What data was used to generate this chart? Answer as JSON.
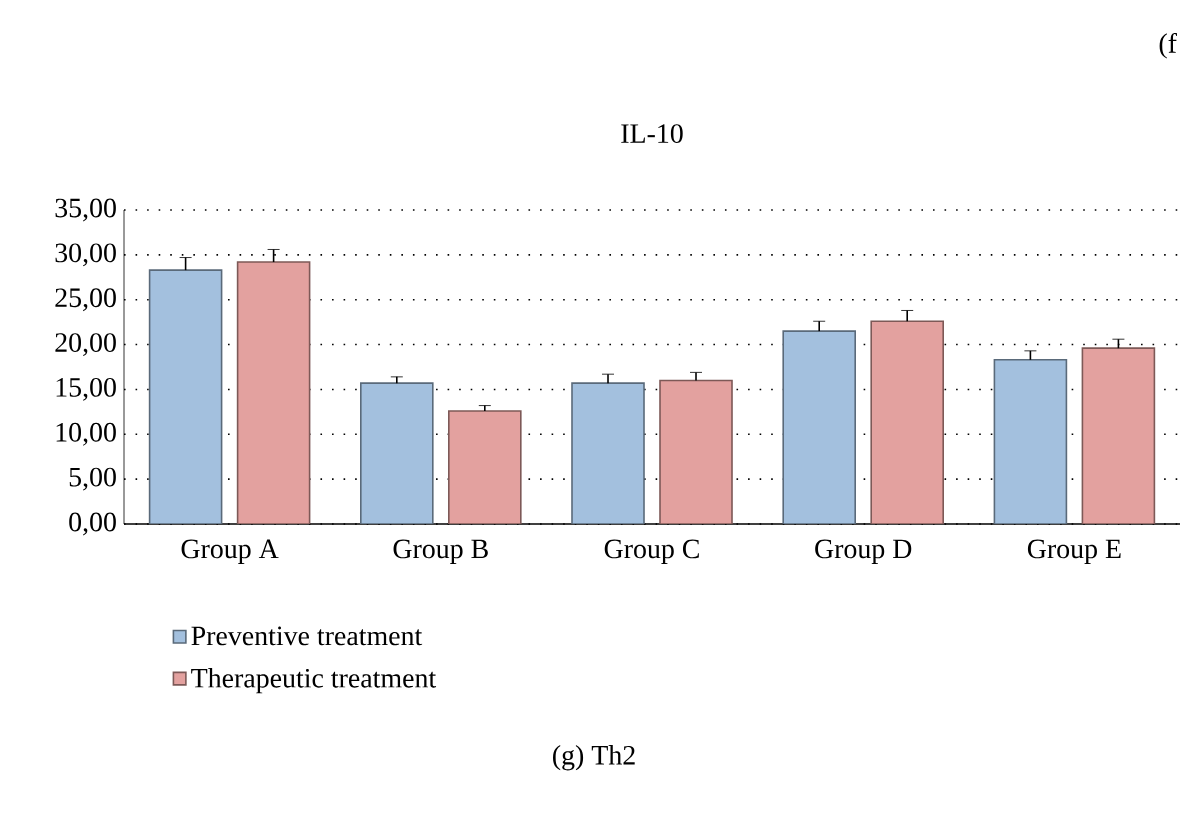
{
  "chart_data": {
    "type": "bar",
    "title": "IL-10",
    "categories": [
      "Group A",
      "Group B",
      "Group C",
      "Group D",
      "Group E"
    ],
    "series": [
      {
        "name": "Preventive treatment",
        "color": "#a3c0de",
        "values": [
          28.3,
          15.7,
          15.7,
          21.5,
          18.3
        ],
        "errors": [
          1.4,
          0.7,
          1.0,
          1.1,
          1.0
        ]
      },
      {
        "name": "Therapeutic treatment",
        "color": "#e3a19f",
        "values": [
          29.2,
          12.6,
          16.0,
          22.6,
          19.6
        ],
        "errors": [
          1.4,
          0.6,
          0.9,
          1.2,
          1.0
        ]
      }
    ],
    "ylim": [
      0,
      35
    ],
    "yticks": [
      {
        "value": 0,
        "label": "0,00"
      },
      {
        "value": 5,
        "label": "5,00"
      },
      {
        "value": 10,
        "label": "10,00"
      },
      {
        "value": 15,
        "label": "15,00"
      },
      {
        "value": 20,
        "label": "20,00"
      },
      {
        "value": 25,
        "label": "25,00"
      },
      {
        "value": 30,
        "label": "30,00"
      },
      {
        "value": 35,
        "label": "35,00"
      }
    ],
    "grid": "y",
    "legend": "bottom left",
    "annotations": [
      "(f",
      "(g) Th2"
    ]
  }
}
